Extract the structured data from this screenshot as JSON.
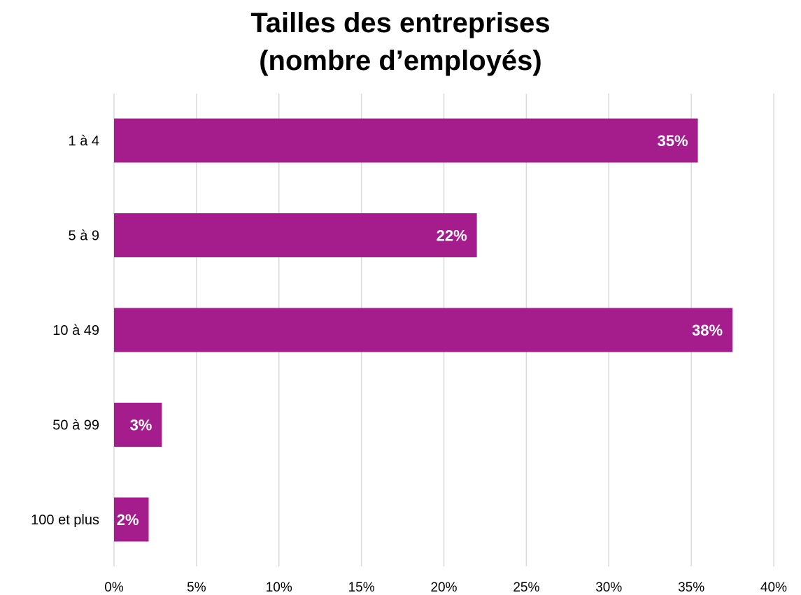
{
  "chart_data": {
    "type": "bar",
    "orientation": "horizontal",
    "title_lines": [
      "Tailles des entreprises",
      "(nombre d’employés)"
    ],
    "categories": [
      "1 à 4",
      "5 à 9",
      "10 à 49",
      "50 à 99",
      "100 et plus"
    ],
    "values": [
      35.4,
      22.0,
      37.5,
      2.9,
      2.1
    ],
    "data_labels": [
      "35%",
      "22%",
      "38%",
      "3%",
      "2%"
    ],
    "xlim": [
      0,
      40
    ],
    "x_ticks": [
      0,
      5,
      10,
      15,
      20,
      25,
      30,
      35,
      40
    ],
    "x_tick_labels": [
      "0%",
      "5%",
      "10%",
      "15%",
      "20%",
      "25%",
      "30%",
      "35%",
      "40%"
    ],
    "grid": true,
    "legend": "none",
    "colors": {
      "bar": "#a51c8c",
      "grid": "#d9d9d9",
      "data_label": "#ffffff",
      "text": "#000000"
    }
  }
}
